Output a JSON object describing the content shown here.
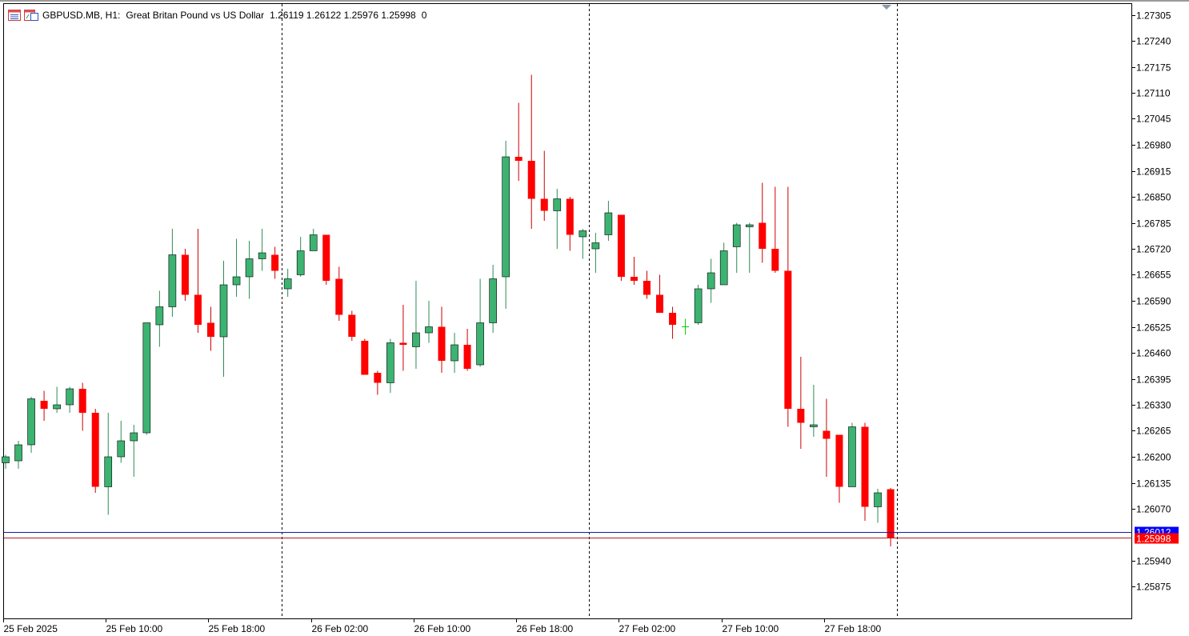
{
  "header": {
    "symbol": "GBPUSD.MB, H1:",
    "description": "Great Britan Pound vs US Dollar",
    "ohlc": "1.26119 1.26122 1.25976 1.25998",
    "volume": "0",
    "icons": [
      "window-list-icon",
      "chart-window-icon"
    ]
  },
  "colors": {
    "bull_body": "#3cb371",
    "bear_body": "#ff0000",
    "bull_wick": "#2e8b57",
    "bear_wick": "#cc0000",
    "doji": "#00cc00",
    "bid_line": "#1a1aa0",
    "ask_line": "#b02020",
    "bid_label_bg": "#0000ff",
    "ask_label_bg": "#ff0000"
  },
  "price_labels": {
    "bid": "1.26012",
    "last": "1.25998"
  },
  "chart_data": {
    "type": "candlestick",
    "title": "GBPUSD.MB, H1",
    "ylim": [
      1.2584,
      1.2733
    ],
    "y_ticks": [
      "1.27305",
      "1.27240",
      "1.27175",
      "1.27110",
      "1.27045",
      "1.26980",
      "1.26915",
      "1.26850",
      "1.26785",
      "1.26720",
      "1.26655",
      "1.26590",
      "1.26525",
      "1.26460",
      "1.26395",
      "1.26330",
      "1.26265",
      "1.26200",
      "1.26135",
      "1.26070",
      "1.25940",
      "1.25875"
    ],
    "x_labels": [
      {
        "label": "25 Feb 2025",
        "index": 0
      },
      {
        "label": "25 Feb 10:00",
        "index": 8
      },
      {
        "label": "25 Feb 18:00",
        "index": 16
      },
      {
        "label": "26 Feb 02:00",
        "index": 24
      },
      {
        "label": "26 Feb 10:00",
        "index": 32
      },
      {
        "label": "26 Feb 18:00",
        "index": 40
      },
      {
        "label": "27 Feb 02:00",
        "index": 48
      },
      {
        "label": "27 Feb 10:00",
        "index": 56
      },
      {
        "label": "27 Feb 18:00",
        "index": 64
      }
    ],
    "day_separators": [
      22,
      46,
      70
    ],
    "horizontal_lines": [
      {
        "name": "bid",
        "value": 1.26012
      },
      {
        "name": "last",
        "value": 1.25998
      }
    ],
    "candles": [
      {
        "o": 1.26185,
        "h": 1.26205,
        "l": 1.2617,
        "c": 1.262
      },
      {
        "o": 1.2619,
        "h": 1.2624,
        "l": 1.2617,
        "c": 1.2623
      },
      {
        "o": 1.2623,
        "h": 1.2635,
        "l": 1.2621,
        "c": 1.26345
      },
      {
        "o": 1.2634,
        "h": 1.26365,
        "l": 1.2629,
        "c": 1.2632
      },
      {
        "o": 1.2632,
        "h": 1.26375,
        "l": 1.2631,
        "c": 1.2633
      },
      {
        "o": 1.2633,
        "h": 1.26375,
        "l": 1.2631,
        "c": 1.2637
      },
      {
        "o": 1.2637,
        "h": 1.26385,
        "l": 1.26265,
        "c": 1.2631
      },
      {
        "o": 1.2631,
        "h": 1.2632,
        "l": 1.2611,
        "c": 1.26125
      },
      {
        "o": 1.26125,
        "h": 1.2631,
        "l": 1.26055,
        "c": 1.262
      },
      {
        "o": 1.262,
        "h": 1.2629,
        "l": 1.26185,
        "c": 1.2624
      },
      {
        "o": 1.2624,
        "h": 1.2628,
        "l": 1.2615,
        "c": 1.2626
      },
      {
        "o": 1.2626,
        "h": 1.26535,
        "l": 1.26255,
        "c": 1.26535
      },
      {
        "o": 1.2653,
        "h": 1.26615,
        "l": 1.26475,
        "c": 1.26575
      },
      {
        "o": 1.26575,
        "h": 1.2677,
        "l": 1.2655,
        "c": 1.26705
      },
      {
        "o": 1.26705,
        "h": 1.2672,
        "l": 1.2659,
        "c": 1.26605
      },
      {
        "o": 1.26605,
        "h": 1.2677,
        "l": 1.2651,
        "c": 1.2653
      },
      {
        "o": 1.26535,
        "h": 1.26575,
        "l": 1.26465,
        "c": 1.265
      },
      {
        "o": 1.265,
        "h": 1.2669,
        "l": 1.264,
        "c": 1.2663
      },
      {
        "o": 1.2663,
        "h": 1.26745,
        "l": 1.266,
        "c": 1.2665
      },
      {
        "o": 1.2665,
        "h": 1.2674,
        "l": 1.26595,
        "c": 1.26695
      },
      {
        "o": 1.26695,
        "h": 1.2677,
        "l": 1.26665,
        "c": 1.2671
      },
      {
        "o": 1.26705,
        "h": 1.26725,
        "l": 1.26645,
        "c": 1.26665
      },
      {
        "o": 1.2662,
        "h": 1.2667,
        "l": 1.266,
        "c": 1.26645
      },
      {
        "o": 1.26655,
        "h": 1.2675,
        "l": 1.2665,
        "c": 1.26715
      },
      {
        "o": 1.26715,
        "h": 1.2677,
        "l": 1.26715,
        "c": 1.26755
      },
      {
        "o": 1.26755,
        "h": 1.26755,
        "l": 1.2663,
        "c": 1.2664
      },
      {
        "o": 1.26645,
        "h": 1.26675,
        "l": 1.2654,
        "c": 1.26555
      },
      {
        "o": 1.26555,
        "h": 1.26565,
        "l": 1.2649,
        "c": 1.265
      },
      {
        "o": 1.2649,
        "h": 1.26495,
        "l": 1.26405,
        "c": 1.26405
      },
      {
        "o": 1.2641,
        "h": 1.26415,
        "l": 1.26355,
        "c": 1.26385
      },
      {
        "o": 1.26385,
        "h": 1.26495,
        "l": 1.2636,
        "c": 1.26485
      },
      {
        "o": 1.26485,
        "h": 1.2658,
        "l": 1.26415,
        "c": 1.2648
      },
      {
        "o": 1.26475,
        "h": 1.2664,
        "l": 1.2642,
        "c": 1.2651
      },
      {
        "o": 1.2651,
        "h": 1.2659,
        "l": 1.26485,
        "c": 1.26525
      },
      {
        "o": 1.26525,
        "h": 1.26575,
        "l": 1.2641,
        "c": 1.2644
      },
      {
        "o": 1.2644,
        "h": 1.2651,
        "l": 1.2641,
        "c": 1.2648
      },
      {
        "o": 1.2648,
        "h": 1.2652,
        "l": 1.26415,
        "c": 1.2642
      },
      {
        "o": 1.2643,
        "h": 1.26645,
        "l": 1.26425,
        "c": 1.26535
      },
      {
        "o": 1.26535,
        "h": 1.2668,
        "l": 1.2651,
        "c": 1.26645
      },
      {
        "o": 1.2665,
        "h": 1.2699,
        "l": 1.2657,
        "c": 1.2695
      },
      {
        "o": 1.2695,
        "h": 1.27085,
        "l": 1.2689,
        "c": 1.2694
      },
      {
        "o": 1.2694,
        "h": 1.27155,
        "l": 1.2677,
        "c": 1.26845
      },
      {
        "o": 1.26845,
        "h": 1.26965,
        "l": 1.2679,
        "c": 1.26815
      },
      {
        "o": 1.26815,
        "h": 1.2687,
        "l": 1.2672,
        "c": 1.26845
      },
      {
        "o": 1.26845,
        "h": 1.2685,
        "l": 1.26715,
        "c": 1.26755
      },
      {
        "o": 1.2675,
        "h": 1.2677,
        "l": 1.26695,
        "c": 1.26765
      },
      {
        "o": 1.2672,
        "h": 1.2676,
        "l": 1.2666,
        "c": 1.26735
      },
      {
        "o": 1.26755,
        "h": 1.2684,
        "l": 1.2674,
        "c": 1.2681
      },
      {
        "o": 1.26805,
        "h": 1.26805,
        "l": 1.2664,
        "c": 1.2665
      },
      {
        "o": 1.2665,
        "h": 1.267,
        "l": 1.2663,
        "c": 1.2664
      },
      {
        "o": 1.2664,
        "h": 1.26665,
        "l": 1.26595,
        "c": 1.26605
      },
      {
        "o": 1.26605,
        "h": 1.26655,
        "l": 1.2657,
        "c": 1.2656
      },
      {
        "o": 1.2656,
        "h": 1.26575,
        "l": 1.26495,
        "c": 1.2653
      },
      {
        "o": 1.26525,
        "h": 1.26545,
        "l": 1.26505,
        "c": 1.26525
      },
      {
        "o": 1.26535,
        "h": 1.2663,
        "l": 1.2653,
        "c": 1.2662
      },
      {
        "o": 1.2662,
        "h": 1.26695,
        "l": 1.26585,
        "c": 1.2666
      },
      {
        "o": 1.2663,
        "h": 1.26735,
        "l": 1.2663,
        "c": 1.26715
      },
      {
        "o": 1.26725,
        "h": 1.26785,
        "l": 1.2666,
        "c": 1.2678
      },
      {
        "o": 1.26775,
        "h": 1.26785,
        "l": 1.2666,
        "c": 1.2678
      },
      {
        "o": 1.26785,
        "h": 1.26885,
        "l": 1.26685,
        "c": 1.2672
      },
      {
        "o": 1.2672,
        "h": 1.26875,
        "l": 1.2666,
        "c": 1.26665
      },
      {
        "o": 1.26665,
        "h": 1.26875,
        "l": 1.26275,
        "c": 1.2632
      },
      {
        "o": 1.2632,
        "h": 1.2645,
        "l": 1.2622,
        "c": 1.26285
      },
      {
        "o": 1.26275,
        "h": 1.2638,
        "l": 1.2625,
        "c": 1.2628
      },
      {
        "o": 1.26265,
        "h": 1.26345,
        "l": 1.2615,
        "c": 1.26245
      },
      {
        "o": 1.26255,
        "h": 1.26255,
        "l": 1.26085,
        "c": 1.26125
      },
      {
        "o": 1.26125,
        "h": 1.26285,
        "l": 1.26125,
        "c": 1.26275
      },
      {
        "o": 1.26275,
        "h": 1.26285,
        "l": 1.2604,
        "c": 1.26075
      },
      {
        "o": 1.26075,
        "h": 1.2612,
        "l": 1.26035,
        "c": 1.2611
      },
      {
        "o": 1.26119,
        "h": 1.26122,
        "l": 1.25976,
        "c": 1.25998
      }
    ]
  }
}
